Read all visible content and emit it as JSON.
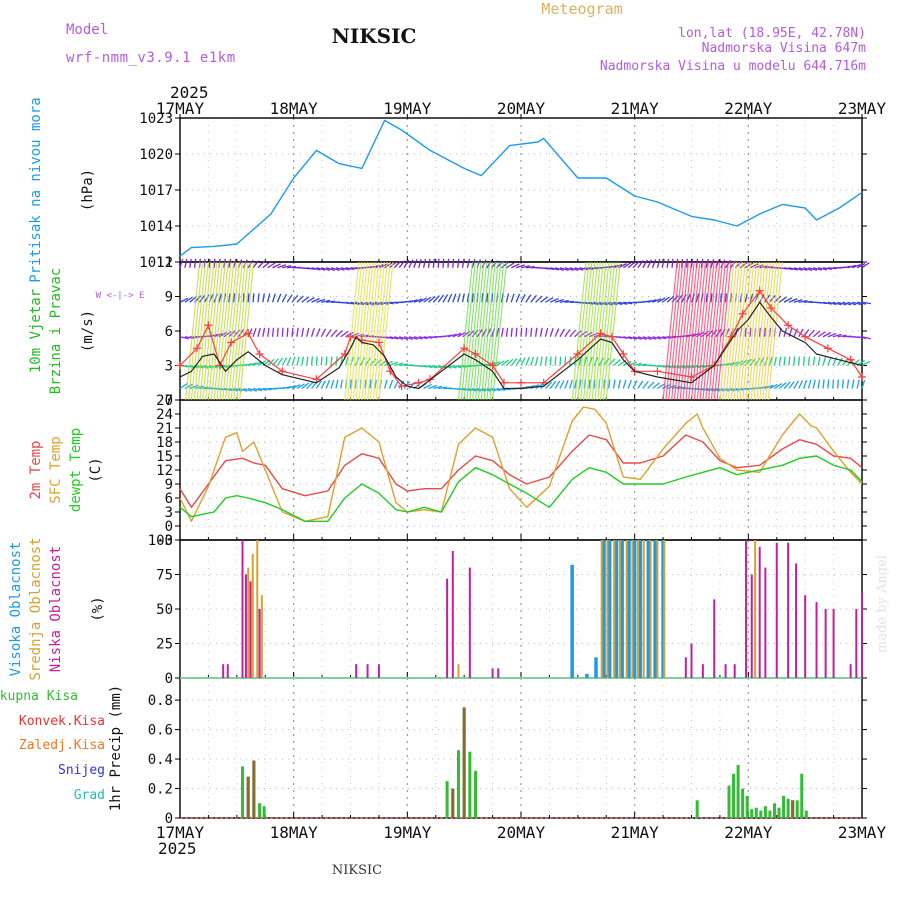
{
  "header": {
    "model_label": "Model",
    "model_value": "wrf-nmm_v3.9.1 e1km",
    "station": "NIKSIC",
    "meteogram_label": "Meteogram",
    "coords": "lon,lat (18.95E, 42.78N)",
    "elevation": "Nadmorska Visina 647m",
    "model_elevation": "Nadmorska Visina u modelu 644.716m",
    "year": "2025"
  },
  "footer": {
    "station": "NIKSIC",
    "year": "2025",
    "credit": "made by Angel"
  },
  "days": [
    "17MAY",
    "18MAY",
    "19MAY",
    "20MAY",
    "21MAY",
    "22MAY",
    "23MAY"
  ],
  "colors": {
    "pressure": "#1e9be6",
    "wind_speed": "#222222",
    "wind_gust": "#ff3c3c",
    "temp_2m": "#e84a4a",
    "temp_sfc": "#e0a030",
    "dewpoint": "#22cc22",
    "cloud_high": "#1e9be6",
    "cloud_mid": "#d8a030",
    "cloud_low": "#c21f9c",
    "precip_total": "#33bb33",
    "precip_conv": "#ee3333",
    "precip_frozen": "#ee7722",
    "snow": "#3333dd",
    "hail": "#22bbbb"
  },
  "chart_data": [
    {
      "id": "pressure",
      "type": "line",
      "ylabel_lines": [
        "Pritisak na nivou mora",
        "(hPa)"
      ],
      "ylim": [
        1011,
        1023
      ],
      "yticks": [
        1011,
        1014,
        1017,
        1020,
        1023
      ],
      "x_days": [
        0,
        0.1,
        0.3,
        0.5,
        0.8,
        1.0,
        1.2,
        1.4,
        1.6,
        1.8,
        1.95,
        2.2,
        2.5,
        2.65,
        2.9,
        3.15,
        3.2,
        3.5,
        3.75,
        4.0,
        4.2,
        4.5,
        4.7,
        4.9,
        5.1,
        5.3,
        5.5,
        5.6,
        5.8,
        6.0
      ],
      "values": [
        1011.5,
        1012.2,
        1012.3,
        1012.5,
        1015.0,
        1018.0,
        1020.3,
        1019.2,
        1018.8,
        1022.8,
        1022.0,
        1020.3,
        1018.8,
        1018.2,
        1020.7,
        1021.0,
        1021.3,
        1018.0,
        1018.0,
        1016.5,
        1016.0,
        1014.8,
        1014.5,
        1014.0,
        1015.0,
        1015.8,
        1015.5,
        1014.5,
        1015.5,
        1016.8
      ]
    },
    {
      "id": "wind",
      "type": "line",
      "ylabel_lines": [
        "10m Vjetar",
        "Brzina i Pravac",
        "(m/s)"
      ],
      "legend_compass": "W <-|-> E",
      "ylim": [
        0,
        12
      ],
      "yticks": [
        0,
        3,
        6,
        9,
        12
      ],
      "series": [
        {
          "name": "speed",
          "x_days": [
            0,
            0.1,
            0.2,
            0.3,
            0.4,
            0.5,
            0.6,
            0.75,
            0.9,
            1.2,
            1.4,
            1.5,
            1.55,
            1.6,
            1.7,
            1.8,
            1.9,
            2.0,
            2.1,
            2.3,
            2.5,
            2.6,
            2.75,
            2.85,
            3.0,
            3.2,
            3.5,
            3.7,
            3.8,
            3.9,
            4.0,
            4.2,
            4.5,
            4.7,
            4.8,
            4.9,
            5.0,
            5.1,
            5.2,
            5.3,
            5.4,
            5.5,
            5.6,
            5.8,
            6.0
          ],
          "values": [
            2.0,
            2.5,
            3.8,
            4.0,
            2.5,
            3.5,
            4.2,
            3.0,
            2.2,
            1.5,
            2.8,
            4.5,
            5.5,
            5.0,
            4.8,
            3.8,
            2.0,
            1.2,
            1.0,
            2.5,
            4.0,
            3.5,
            2.5,
            1.0,
            1.0,
            1.2,
            3.5,
            5.3,
            5.0,
            3.5,
            2.5,
            2.0,
            1.5,
            3.0,
            4.5,
            6.0,
            7.0,
            8.5,
            7.2,
            6.0,
            5.5,
            5.0,
            4.0,
            3.5,
            3.0
          ]
        },
        {
          "name": "gust",
          "x_days": [
            0,
            0.15,
            0.25,
            0.35,
            0.45,
            0.6,
            0.7,
            0.9,
            1.2,
            1.45,
            1.5,
            1.6,
            1.75,
            1.85,
            1.95,
            2.1,
            2.2,
            2.5,
            2.6,
            2.75,
            2.85,
            3.0,
            3.2,
            3.5,
            3.7,
            3.8,
            3.9,
            4.0,
            4.2,
            4.5,
            4.7,
            4.85,
            4.95,
            5.1,
            5.2,
            5.35,
            5.5,
            5.7,
            5.9,
            6.0
          ],
          "values": [
            3.0,
            4.5,
            6.5,
            3.0,
            5.0,
            5.8,
            4.0,
            2.5,
            1.8,
            4.0,
            5.5,
            5.2,
            5.0,
            2.5,
            1.2,
            1.5,
            1.8,
            4.5,
            4.0,
            3.0,
            1.5,
            1.5,
            1.5,
            4.0,
            5.8,
            5.5,
            4.0,
            2.5,
            2.5,
            2.0,
            3.0,
            5.5,
            7.5,
            9.5,
            8.0,
            6.5,
            5.5,
            4.5,
            3.5,
            2.0
          ]
        }
      ]
    },
    {
      "id": "temperature",
      "type": "line",
      "ylabel_lines": [
        "2m Temp",
        "SFC Temp",
        "dewpt Temp",
        "(C)"
      ],
      "ylim": [
        -3,
        27
      ],
      "yticks": [
        -3,
        0,
        3,
        6,
        9,
        12,
        15,
        18,
        21,
        24,
        27
      ],
      "series": [
        {
          "name": "2m Temp",
          "x_days": [
            0,
            0.1,
            0.25,
            0.4,
            0.55,
            0.65,
            0.75,
            0.9,
            1.1,
            1.3,
            1.45,
            1.6,
            1.75,
            1.9,
            2.0,
            2.15,
            2.3,
            2.45,
            2.6,
            2.75,
            2.9,
            3.05,
            3.25,
            3.45,
            3.6,
            3.75,
            3.9,
            4.05,
            4.25,
            4.45,
            4.6,
            4.75,
            4.9,
            5.1,
            5.3,
            5.45,
            5.6,
            5.75,
            5.9,
            6.0
          ],
          "values": [
            8.0,
            4.0,
            9.0,
            14.0,
            14.5,
            13.5,
            13.0,
            8.0,
            6.5,
            7.5,
            13.0,
            15.5,
            14.5,
            9.0,
            7.5,
            8.0,
            8.0,
            12.0,
            15.0,
            14.0,
            11.0,
            9.0,
            10.5,
            16.0,
            19.5,
            18.5,
            13.5,
            13.5,
            15.0,
            19.5,
            18.0,
            14.0,
            12.5,
            13.0,
            16.5,
            18.5,
            17.5,
            15.0,
            14.5,
            12.5
          ]
        },
        {
          "name": "SFC Temp",
          "x_days": [
            0,
            0.1,
            0.25,
            0.4,
            0.5,
            0.55,
            0.65,
            0.75,
            0.9,
            1.1,
            1.3,
            1.45,
            1.6,
            1.75,
            1.9,
            2.0,
            2.15,
            2.3,
            2.45,
            2.6,
            2.75,
            2.9,
            3.05,
            3.25,
            3.45,
            3.55,
            3.65,
            3.75,
            3.9,
            4.05,
            4.25,
            4.45,
            4.55,
            4.6,
            4.75,
            4.9,
            5.1,
            5.3,
            5.45,
            5.55,
            5.6,
            5.75,
            5.9,
            6.0
          ],
          "values": [
            6.0,
            1.0,
            8.5,
            19.0,
            20.0,
            16.0,
            18.0,
            12.0,
            3.0,
            1.0,
            2.0,
            19.0,
            21.0,
            18.0,
            5.0,
            3.0,
            3.5,
            3.0,
            17.5,
            21.0,
            19.0,
            8.0,
            4.0,
            8.5,
            22.5,
            25.5,
            25.0,
            22.0,
            10.5,
            10.0,
            16.5,
            22.0,
            24.0,
            21.0,
            14.5,
            12.0,
            11.5,
            19.5,
            24.0,
            21.5,
            21.0,
            16.0,
            11.5,
            9.0
          ]
        },
        {
          "name": "dewpt Temp",
          "x_days": [
            0,
            0.1,
            0.2,
            0.3,
            0.4,
            0.5,
            0.6,
            0.75,
            0.9,
            1.1,
            1.3,
            1.45,
            1.6,
            1.75,
            1.9,
            2.0,
            2.15,
            2.3,
            2.45,
            2.6,
            2.75,
            2.9,
            3.05,
            3.25,
            3.45,
            3.6,
            3.75,
            3.9,
            4.05,
            4.25,
            4.45,
            4.6,
            4.75,
            4.9,
            5.1,
            5.3,
            5.45,
            5.6,
            5.75,
            5.9,
            6.0
          ],
          "values": [
            4.0,
            2.0,
            2.5,
            3.0,
            6.0,
            6.5,
            6.0,
            5.0,
            3.5,
            1.0,
            1.0,
            6.0,
            9.0,
            7.0,
            3.5,
            3.0,
            4.0,
            3.0,
            9.5,
            12.5,
            11.0,
            9.0,
            7.0,
            4.0,
            10.0,
            12.5,
            11.5,
            9.0,
            9.0,
            9.0,
            10.5,
            11.5,
            12.5,
            11.0,
            12.0,
            13.0,
            14.5,
            15.0,
            13.0,
            12.0,
            9.5
          ]
        }
      ]
    },
    {
      "id": "clouds",
      "type": "bar",
      "ylabel_lines": [
        "Visoka Oblacnost",
        "Srednja Oblacnost",
        "Niska Oblacnost",
        "(%)"
      ],
      "ylim": [
        0,
        100
      ],
      "yticks": [
        0,
        25,
        50,
        75,
        100
      ],
      "series": [
        {
          "name": "Visoka Oblacnost",
          "x_days": [
            3.45,
            3.58,
            3.66,
            3.73,
            3.78,
            3.84,
            3.89,
            3.95,
            4.0,
            4.05,
            4.12,
            4.18,
            4.25
          ],
          "values": [
            82,
            3,
            15,
            100,
            100,
            100,
            100,
            100,
            100,
            100,
            100,
            100,
            100
          ]
        },
        {
          "name": "Srednja Oblacnost",
          "x_days": [
            0.6,
            0.64,
            0.68,
            0.72,
            2.45,
            3.71,
            3.76,
            3.82,
            3.87,
            3.93,
            3.98,
            4.03,
            4.08,
            4.14,
            4.2,
            4.26,
            5.06
          ],
          "values": [
            80,
            90,
            100,
            60,
            10,
            100,
            100,
            100,
            100,
            100,
            100,
            100,
            100,
            100,
            100,
            100,
            100
          ]
        },
        {
          "name": "Niska Oblacnost",
          "x_days": [
            0.38,
            0.42,
            0.55,
            0.58,
            0.62,
            0.7,
            1.55,
            1.65,
            1.75,
            2.35,
            2.4,
            2.55,
            2.75,
            2.8,
            4.45,
            4.5,
            4.6,
            4.7,
            4.8,
            4.88,
            4.98,
            5.03,
            5.1,
            5.15,
            5.25,
            5.35,
            5.42,
            5.5,
            5.6,
            5.68,
            5.75,
            5.9,
            5.95,
            6.0
          ],
          "values": [
            10,
            10,
            100,
            75,
            70,
            50,
            10,
            10,
            10,
            72,
            92,
            80,
            7,
            7,
            15,
            25,
            10,
            57,
            10,
            10,
            100,
            75,
            95,
            80,
            98,
            98,
            83,
            60,
            55,
            50,
            50,
            10,
            50,
            62
          ]
        }
      ]
    },
    {
      "id": "precip",
      "type": "bar",
      "ylabel_lines": [
        "1hr Precip (mm)"
      ],
      "legend": [
        "Ukupna Kisa",
        "Konvek.Kisa",
        "Zaledj.Kisa",
        "Snijeg",
        "Grad"
      ],
      "ylim": [
        0,
        0.95
      ],
      "yticks": [
        0,
        0.2,
        0.4,
        0.6,
        0.8
      ],
      "series": [
        {
          "name": "Ukupna Kisa",
          "x_days": [
            0.55,
            0.6,
            0.65,
            0.7,
            0.74,
            2.35,
            2.4,
            2.45,
            2.5,
            2.55,
            2.6,
            4.55,
            4.83,
            4.87,
            4.91,
            4.95,
            4.99,
            5.03,
            5.07,
            5.11,
            5.15,
            5.19,
            5.23,
            5.27,
            5.31,
            5.35,
            5.39,
            5.43,
            5.47,
            5.51
          ],
          "values": [
            0.35,
            0.28,
            0.39,
            0.1,
            0.08,
            0.25,
            0.2,
            0.46,
            0.75,
            0.45,
            0.32,
            0.12,
            0.22,
            0.3,
            0.36,
            0.2,
            0.15,
            0.06,
            0.07,
            0.05,
            0.08,
            0.05,
            0.1,
            0.07,
            0.15,
            0.13,
            0.12,
            0.12,
            0.3,
            0.05
          ]
        },
        {
          "name": "Konvek.Kisa",
          "x_days": [
            0.6,
            0.65,
            2.4,
            2.5,
            5.39
          ],
          "values": [
            0.28,
            0.39,
            0.2,
            0.75,
            0.12
          ]
        }
      ]
    }
  ]
}
